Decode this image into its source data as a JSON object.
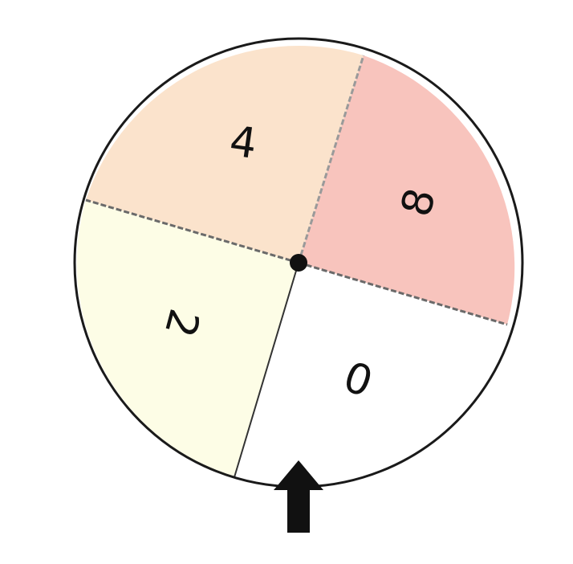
{
  "spinner": {
    "sectors": [
      {
        "label": "4",
        "color": "#fbe3cc"
      },
      {
        "label": "8",
        "color": "#f8c4bd"
      },
      {
        "label": "0",
        "color": "#ffffff"
      },
      {
        "label": "2",
        "color": "#fdfde6"
      }
    ],
    "outline_color": "#1a1a1a",
    "divider_color": "#9a9a9a",
    "pointer": {
      "icon": "up-arrow-icon",
      "color": "#111111"
    }
  }
}
